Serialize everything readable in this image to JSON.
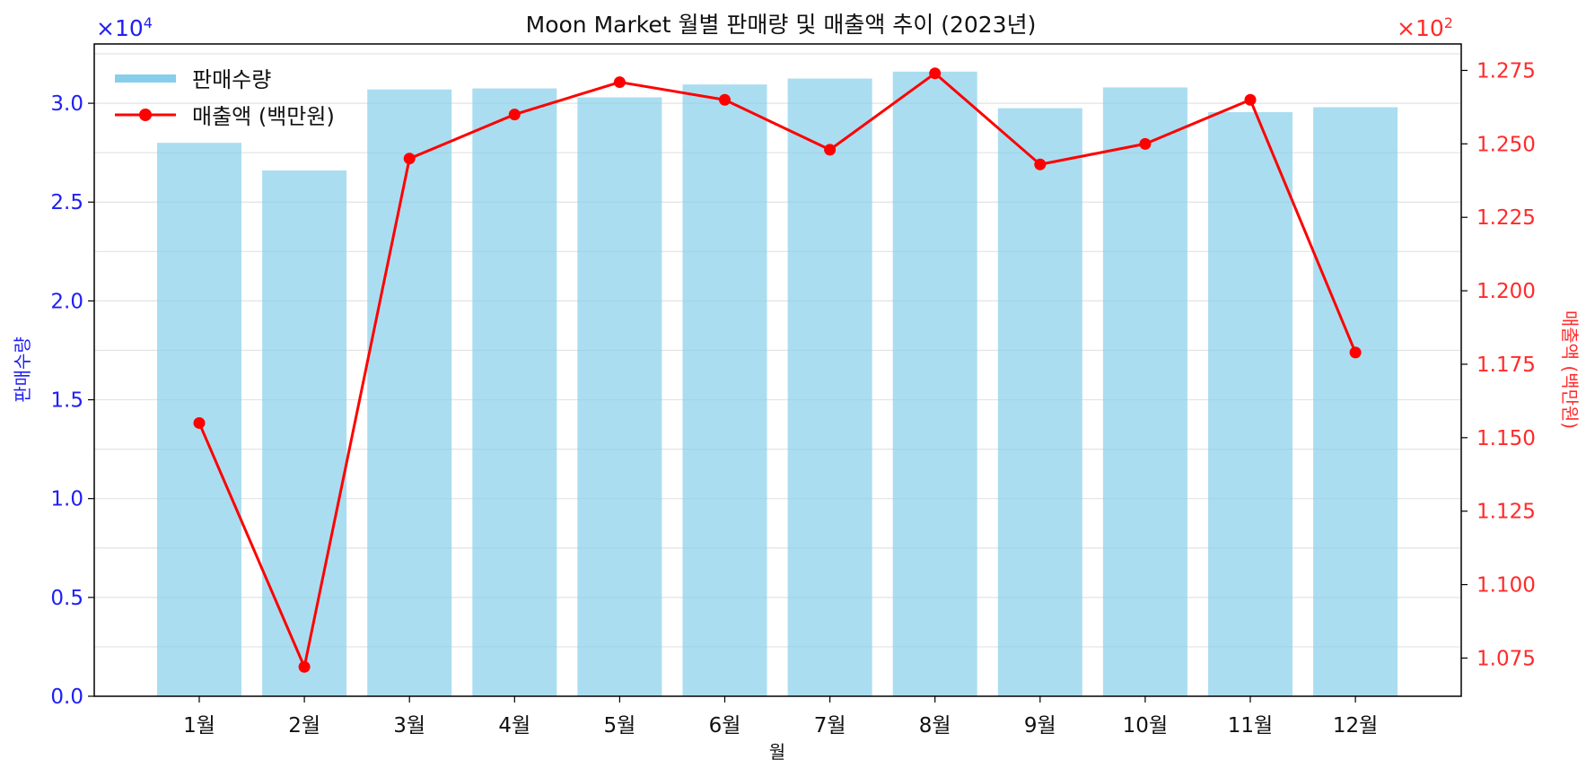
{
  "chart_data": {
    "type": "bar",
    "title": "Moon Market 월별 판매량 및 매출액 추이 (2023년)",
    "xlabel": "월",
    "ylabel_left": "판매수량",
    "ylabel_right": "매출액 (백만원)",
    "categories": [
      "1월",
      "2월",
      "3월",
      "4월",
      "5월",
      "6월",
      "7월",
      "8월",
      "9월",
      "10월",
      "11월",
      "12월"
    ],
    "series": [
      {
        "name": "판매수량",
        "type": "bar",
        "axis": "left",
        "color": "#87ceeb",
        "values": [
          28000,
          26600,
          30700,
          30750,
          30300,
          30950,
          31250,
          31600,
          29750,
          30800,
          29550,
          29800
        ]
      },
      {
        "name": "매출액 (백만원)",
        "type": "line",
        "axis": "right",
        "color": "#ff0000",
        "values": [
          115.5,
          107.2,
          124.5,
          126.0,
          127.1,
          126.5,
          124.8,
          127.4,
          124.3,
          125.0,
          126.5,
          117.9
        ]
      }
    ],
    "ylim_left": [
      0,
      33000
    ],
    "ylim_right": [
      106.2,
      128.4
    ],
    "yticks_left": [
      0,
      0.5,
      1.0,
      1.5,
      2.0,
      2.5,
      3.0
    ],
    "ytick_labels_left": [
      "0.0",
      "0.5",
      "1.0",
      "1.5",
      "2.0",
      "2.5",
      "3.0"
    ],
    "yticks_right": [
      1.075,
      1.1,
      1.125,
      1.15,
      1.175,
      1.2,
      1.225,
      1.25,
      1.275
    ],
    "ytick_labels_right": [
      "1.075",
      "1.100",
      "1.125",
      "1.150",
      "1.175",
      "1.200",
      "1.225",
      "1.250",
      "1.275"
    ],
    "multiplier_left": {
      "base": "×10",
      "exp": "4"
    },
    "multiplier_right": {
      "base": "×10",
      "exp": "2"
    },
    "grid": "horizontal",
    "legend_position": "top-left"
  }
}
